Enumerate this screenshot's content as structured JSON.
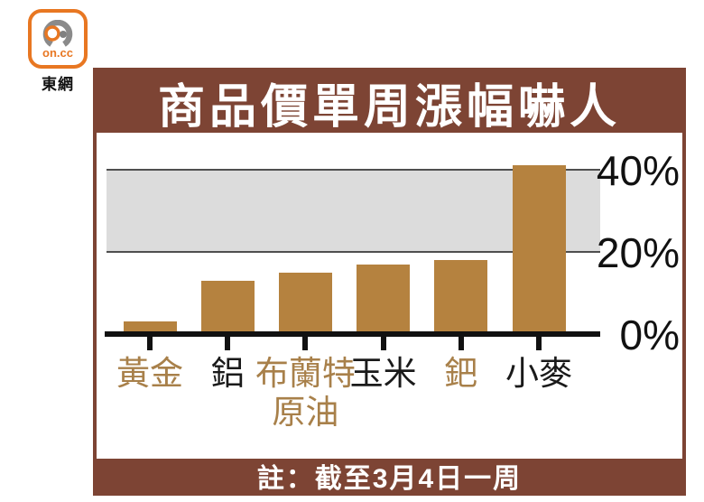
{
  "logo": {
    "brand": "on.cc",
    "site_name": "東網"
  },
  "panel": {
    "title": "商品價單周漲幅嚇人",
    "note": "註：截至3月4日一周"
  },
  "colors": {
    "panel_brown": "#7d4434",
    "bar": "#b5823f",
    "shade_gray": "#dcdcdc",
    "grid_line": "#4f4f4f",
    "axis_black": "#111111",
    "label_gold": "#a8804a",
    "label_black": "#1a1a1a",
    "logo_orange": "#e87722",
    "logo_gray": "#8a8a8a"
  },
  "chart_data": {
    "type": "bar",
    "title": "商品價單周漲幅嚇人",
    "note": "註：截至3月4日一周",
    "categories": [
      "黃金",
      "鋁",
      "布蘭特原油",
      "玉米",
      "鈀",
      "小麥"
    ],
    "category_lines": [
      [
        "黃金"
      ],
      [
        "鋁"
      ],
      [
        "布蘭特",
        "原油"
      ],
      [
        "玉米"
      ],
      [
        "鈀"
      ],
      [
        "小麥"
      ]
    ],
    "category_colors": [
      "gold",
      "black",
      "gold",
      "black",
      "gold",
      "black"
    ],
    "values": [
      3,
      13,
      15,
      17,
      18,
      41
    ],
    "unit": "%",
    "ylabel": "",
    "xlabel": "",
    "ylim": [
      0,
      44
    ],
    "y_ticks": [
      {
        "label": "40%",
        "value": 40
      },
      {
        "label": "20%",
        "value": 20
      },
      {
        "label": "0%",
        "value": 0
      }
    ],
    "shaded_band": {
      "from": 20,
      "to": 40
    },
    "legend": "none",
    "grid": "horizontal lines at 20% and 40% only"
  }
}
